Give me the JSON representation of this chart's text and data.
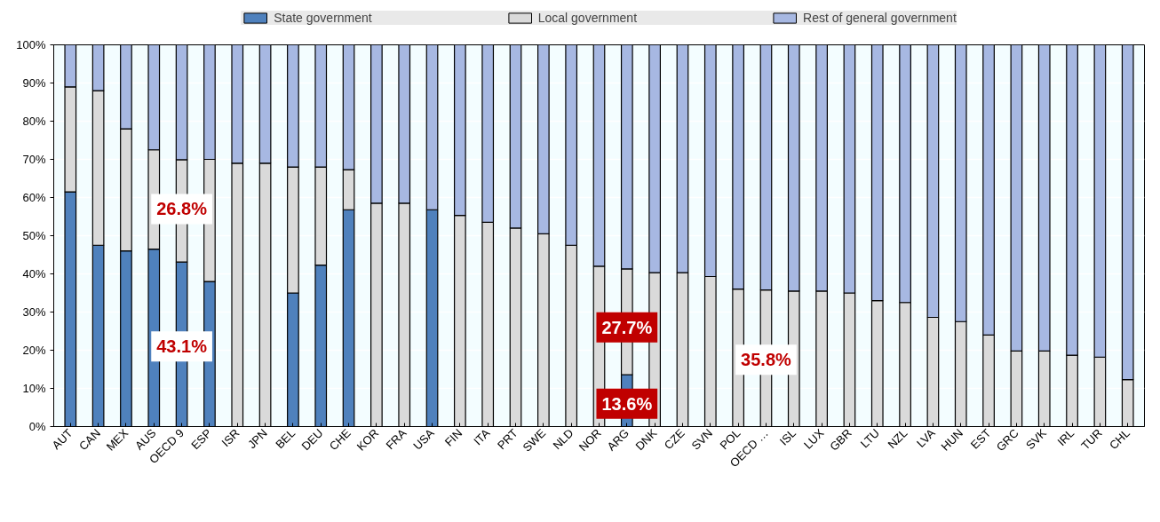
{
  "chart_data": {
    "type": "bar",
    "stacked": true,
    "categories": [
      "AUT",
      "CAN",
      "MEX",
      "AUS",
      "OECD 9",
      "ESP",
      "ISR",
      "JPN",
      "BEL",
      "DEU",
      "CHE",
      "KOR",
      "FRA",
      "USA",
      "FIN",
      "ITA",
      "PRT",
      "SWE",
      "NLD",
      "NOR",
      "ARG",
      "DNK",
      "CZE",
      "SVN",
      "POL",
      "OECD …",
      "ISL",
      "LUX",
      "GBR",
      "LTU",
      "NZL",
      "LVA",
      "HUN",
      "EST",
      "GRC",
      "SVK",
      "IRL",
      "TUR",
      "CHL"
    ],
    "series": [
      {
        "name": "State government",
        "color": "#4f81bd",
        "values": [
          61.5,
          47.5,
          46,
          46.5,
          43.1,
          38,
          0,
          0,
          35,
          42.3,
          56.8,
          0,
          0,
          56.8,
          0,
          0,
          0,
          0,
          0,
          0,
          13.6,
          0,
          0,
          0,
          0,
          0,
          0,
          0,
          0,
          0,
          0,
          0,
          0,
          0,
          0,
          0,
          0,
          0,
          0
        ]
      },
      {
        "name": "Local government",
        "color": "#dadada",
        "values": [
          27.5,
          40.5,
          32,
          26,
          26.8,
          32,
          69,
          69,
          33,
          25.7,
          10.5,
          58.5,
          58.5,
          0,
          55.3,
          53.5,
          52,
          50.5,
          47.5,
          42,
          27.7,
          40.3,
          40.3,
          39.3,
          36,
          35.8,
          35.5,
          35.5,
          35,
          33,
          32.5,
          28.6,
          27.5,
          24,
          19.8,
          19.8,
          18.7,
          18.2,
          12.3
        ]
      },
      {
        "name": "Rest of general government",
        "color": "#a7b8e2",
        "values": [
          11,
          12,
          22,
          27.5,
          30.1,
          30,
          31,
          31,
          32,
          32,
          32.7,
          41.5,
          41.5,
          43.2,
          44.7,
          46.5,
          48,
          49.5,
          52.5,
          58,
          58.7,
          59.7,
          59.7,
          60.7,
          64,
          64.2,
          64.5,
          64.5,
          65,
          67,
          67.5,
          71.4,
          72.5,
          76,
          80.2,
          80.2,
          81.3,
          81.8,
          87.7
        ]
      }
    ],
    "ylim": [
      0,
      100
    ],
    "yticks": [
      {
        "value": 0,
        "label": "0%"
      },
      {
        "value": 10,
        "label": "10%"
      },
      {
        "value": 20,
        "label": "20%"
      },
      {
        "value": 30,
        "label": "30%"
      },
      {
        "value": 40,
        "label": "40%"
      },
      {
        "value": 50,
        "label": "50%"
      },
      {
        "value": 60,
        "label": "60%"
      },
      {
        "value": 70,
        "label": "70%"
      },
      {
        "value": 80,
        "label": "80%"
      },
      {
        "value": 90,
        "label": "90%"
      },
      {
        "value": 100,
        "label": "100%"
      }
    ],
    "grid": "y",
    "legend": "top",
    "annotations": [
      "26.8%",
      "43.1%",
      "27.7%",
      "13.6%",
      "35.8%"
    ]
  }
}
